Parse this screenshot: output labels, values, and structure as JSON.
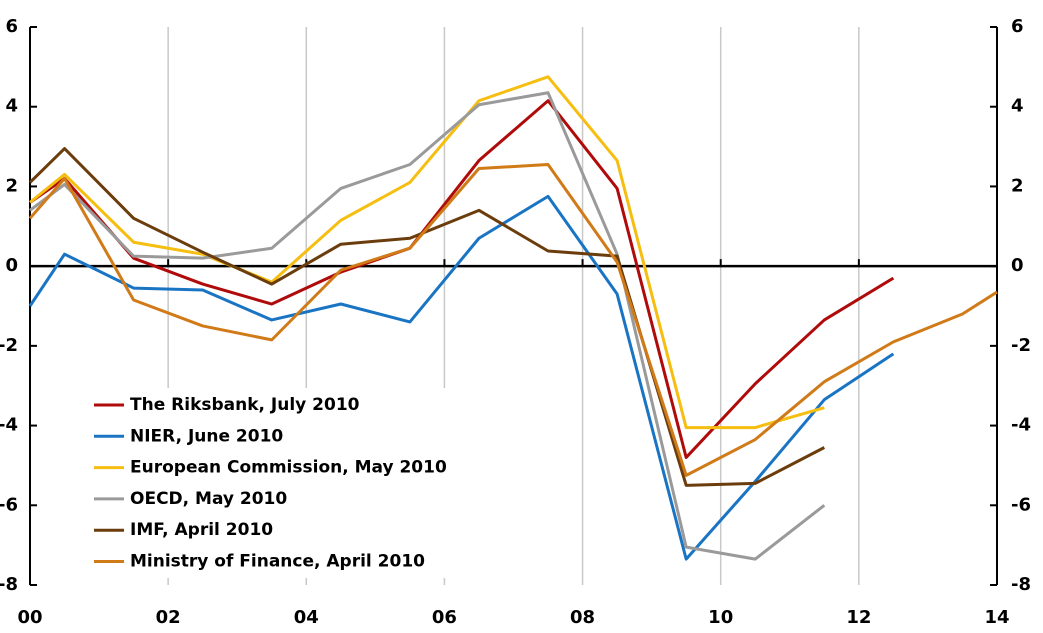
{
  "chart_data": {
    "type": "line",
    "x": [
      2000,
      2000.5,
      2001.5,
      2002.5,
      2003.5,
      2004.5,
      2005.5,
      2006.5,
      2007.5,
      2008.5,
      2009.5,
      2010.5,
      2011.5,
      2012.5,
      2013.5,
      2014
    ],
    "series": [
      {
        "name": "The Riksbank, July 2010",
        "color": "#b00b0b",
        "values": [
          1.6,
          2.2,
          0.2,
          -0.45,
          -0.95,
          -0.15,
          0.45,
          2.65,
          4.15,
          1.95,
          -4.8,
          -2.95,
          -1.35,
          -0.3,
          null,
          null
        ]
      },
      {
        "name": "NIER, June 2010",
        "color": "#1a74c4",
        "values": [
          -1.0,
          0.3,
          -0.55,
          -0.6,
          -1.35,
          -0.95,
          -1.4,
          0.7,
          1.75,
          -0.7,
          -7.35,
          -5.4,
          -3.35,
          -2.2,
          null,
          null
        ]
      },
      {
        "name": "European Commission, May 2010",
        "color": "#f5be10",
        "values": [
          1.6,
          2.3,
          0.6,
          0.3,
          -0.4,
          1.15,
          2.1,
          4.15,
          4.75,
          2.65,
          -4.05,
          -4.05,
          -3.55,
          null,
          null,
          null
        ]
      },
      {
        "name": "OECD, May 2010",
        "color": "#9a9a9a",
        "values": [
          1.4,
          2.05,
          0.25,
          0.2,
          0.45,
          1.95,
          2.55,
          4.05,
          4.35,
          0.3,
          -7.05,
          -7.35,
          -6.0,
          null,
          null,
          null
        ]
      },
      {
        "name": "IMF, April 2010",
        "color": "#6b3d0c",
        "values": [
          2.1,
          2.95,
          1.2,
          0.35,
          -0.45,
          0.55,
          0.7,
          1.4,
          0.38,
          0.25,
          -5.5,
          -5.45,
          -4.55,
          null,
          null,
          null
        ]
      },
      {
        "name": "Ministry of Finance, April 2010",
        "color": "#d07a18",
        "values": [
          1.2,
          2.2,
          -0.85,
          -1.5,
          -1.85,
          -0.1,
          0.45,
          2.45,
          2.55,
          0.1,
          -5.25,
          -4.35,
          -2.9,
          -1.9,
          -1.2,
          -0.65
        ]
      }
    ],
    "xlim": [
      2000,
      2014
    ],
    "xticks": [
      {
        "value": 2000,
        "label": "00"
      },
      {
        "value": 2002,
        "label": "02"
      },
      {
        "value": 2004,
        "label": "04"
      },
      {
        "value": 2006,
        "label": "06"
      },
      {
        "value": 2008,
        "label": "08"
      },
      {
        "value": 2010,
        "label": "10"
      },
      {
        "value": 2012,
        "label": "12"
      },
      {
        "value": 2014,
        "label": "14"
      }
    ],
    "ylim": [
      -8,
      6
    ],
    "yticks": [
      -8,
      -6,
      -4,
      -2,
      0,
      2,
      4,
      6
    ],
    "y2lim": [
      -8,
      6
    ],
    "y2ticks": [
      -8,
      -6,
      -4,
      -2,
      0,
      2,
      4,
      6
    ],
    "grid": true,
    "legend": "lower-left"
  }
}
